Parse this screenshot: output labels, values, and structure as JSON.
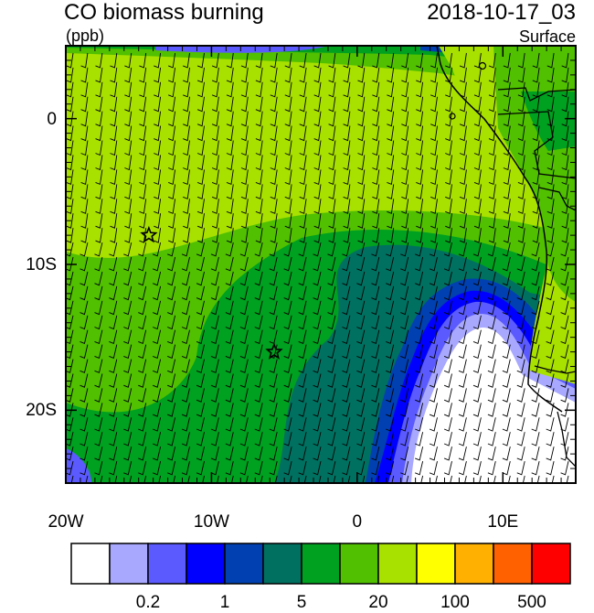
{
  "header": {
    "title": "CO biomass burning",
    "datetime": "2018-10-17_03",
    "units": "(ppb)",
    "level": "Surface"
  },
  "map": {
    "lon_range": [
      -20,
      15
    ],
    "lat_range": [
      -25,
      5
    ],
    "x_ticks": [
      {
        "lon": -20,
        "label": "20W"
      },
      {
        "lon": -10,
        "label": "10W"
      },
      {
        "lon": 0,
        "label": "0"
      },
      {
        "lon": 10,
        "label": "10E"
      }
    ],
    "y_ticks": [
      {
        "lat": 0,
        "label": "0"
      },
      {
        "lat": -10,
        "label": "10S"
      },
      {
        "lat": -20,
        "label": "20S"
      }
    ],
    "markers": [
      {
        "lon": -14.3,
        "lat": -8.0,
        "symbol": "star"
      },
      {
        "lon": -5.7,
        "lat": -16.0,
        "symbol": "star"
      }
    ]
  },
  "colorbar": {
    "colors": [
      "#ffffff",
      "#a8a8ff",
      "#5a5aff",
      "#0000ff",
      "#0040b0",
      "#007060",
      "#00a020",
      "#50c000",
      "#a8e000",
      "#ffff00",
      "#ffb000",
      "#ff6000",
      "#ff0000"
    ],
    "labels": [
      "0.2",
      "1",
      "5",
      "20",
      "100",
      "500"
    ]
  }
}
